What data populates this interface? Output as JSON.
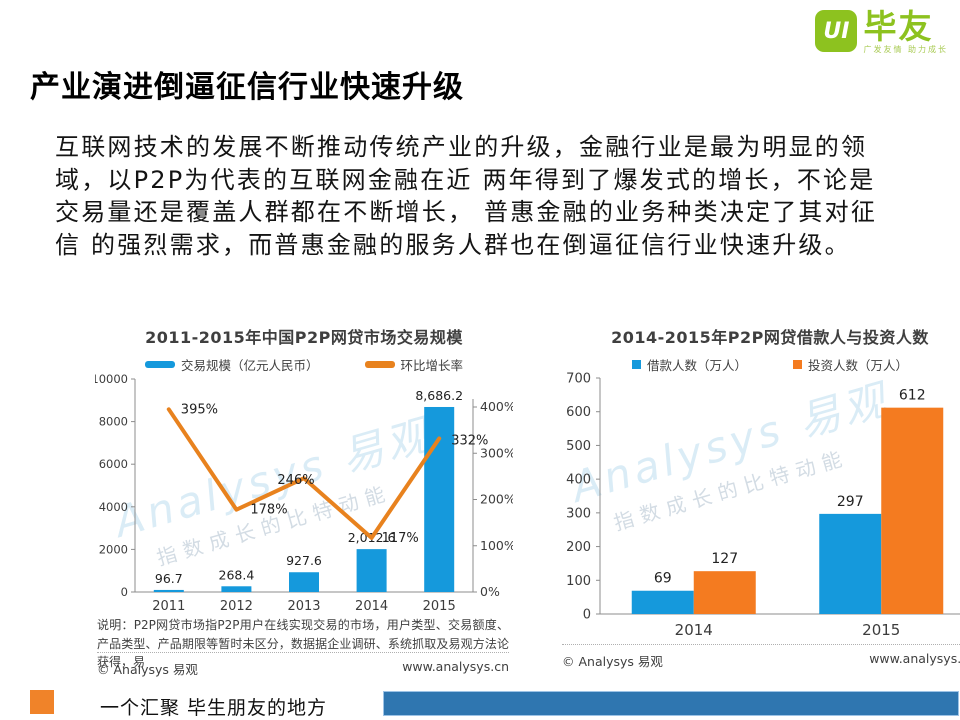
{
  "logo": {
    "ui_text": "UI",
    "brand": "毕友",
    "tagline": "广发友情 助力成长",
    "brand_color": "#8dc21f"
  },
  "title": "产业演进倒逼征信行业快速升级",
  "body_lines": {
    "0": "互联网技术的发展不断推动传统产业的升级，金融行业是最为明显的领",
    "1": "域，以P2P为代表的互联网金融在近 两年得到了爆发式的增长，不论是",
    "2": "交易量还是覆盖人群都在不断增长， 普惠金融的业务种类决定了其对征",
    "3": "信 的强烈需求，而普惠金融的服务人群也在倒逼征信行业快速升级。"
  },
  "watermark": {
    "script": "Analysys 易观",
    "slogan": "指数成长的比特动能"
  },
  "chart_data": [
    {
      "type": "bar+line",
      "title": "2011-2015年中国P2P网贷市场交易规模",
      "categories": [
        "2011",
        "2012",
        "2013",
        "2014",
        "2015"
      ],
      "series": [
        {
          "name": "交易规模（亿元人民币）",
          "type": "bar",
          "axis": "left",
          "color": "#1599dc",
          "values": [
            96.7,
            268.4,
            927.6,
            2012.6,
            8686.2
          ],
          "labels": [
            "96.7",
            "268.4",
            "927.6",
            "2,012.6",
            "8,686.2"
          ]
        },
        {
          "name": "环比增长率",
          "type": "line",
          "axis": "right",
          "color": "#e8821e",
          "values": [
            395,
            178,
            246,
            117,
            332
          ],
          "labels": [
            "395%",
            "178%",
            "246%",
            "117%",
            "332%"
          ]
        }
      ],
      "left_axis": {
        "min": 0,
        "max": 10000,
        "step": 2000,
        "ticks": [
          "0",
          "2000",
          "4000",
          "6000",
          "8000",
          "10000"
        ]
      },
      "right_axis": {
        "min": 0,
        "max": 400,
        "step": 100,
        "ticks": [
          "0%",
          "100%",
          "200%",
          "300%",
          "400%"
        ]
      },
      "legend_position": "top",
      "grid": false,
      "note": "说明：P2P网贷市场指P2P用户在线实现交易的市场，用户类型、交易额度、产品类型、产品期限等暂时未区分，数据据企业调研、系统抓取及易观方法论获得，易",
      "source_left": "© Analysys 易观",
      "source_right": "www.analysys.cn"
    },
    {
      "type": "bar",
      "title": "2014-2015年P2P网贷借款人与投资人数",
      "categories": [
        "2014",
        "2015"
      ],
      "series": [
        {
          "name": "借款人数（万人）",
          "color": "#1599dc",
          "values": [
            69,
            297
          ]
        },
        {
          "name": "投资人数（万人）",
          "color": "#f47b20",
          "values": [
            127,
            612
          ]
        }
      ],
      "y_axis": {
        "min": 0,
        "max": 700,
        "step": 100,
        "ticks": [
          "0",
          "100",
          "200",
          "300",
          "400",
          "500",
          "600",
          "700"
        ]
      },
      "legend_position": "top",
      "grid": false,
      "source_left": "© Analysys 易观",
      "source_right": "www.analysys.cn"
    }
  ],
  "footer": {
    "tagline": "一个汇聚 毕生朋友的地方",
    "accent_color": "#f08329",
    "bar_color": "#2f76b0"
  }
}
